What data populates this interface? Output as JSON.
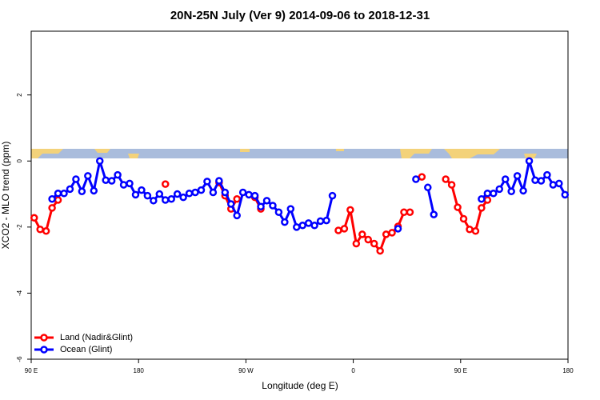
{
  "chart_data": {
    "type": "line",
    "title": "20N-25N July (Ver 9)   2014-09-06 to 2018-12-31",
    "x_label": "Longitude (deg E)",
    "y_label": "XCO2 - MLO trend (ppm)",
    "x": [
      92.5,
      97.5,
      102.5,
      107.5,
      112.5,
      117.5,
      122.5,
      127.5,
      132.5,
      137.5,
      142.5,
      147.5,
      152.5,
      157.5,
      162.5,
      167.5,
      172.5,
      177.5,
      182.5,
      187.5,
      192.5,
      197.5,
      202.5,
      207.5,
      212.5,
      217.5,
      222.5,
      227.5,
      232.5,
      237.5,
      242.5,
      247.5,
      252.5,
      257.5,
      262.5,
      267.5,
      272.5,
      277.5,
      282.5,
      287.5,
      292.5,
      297.5,
      302.5,
      307.5,
      312.5,
      317.5,
      322.5,
      327.5,
      332.5,
      337.5,
      342.5,
      347.5,
      352.5,
      357.5,
      362.5,
      367.5,
      372.5,
      377.5,
      382.5,
      387.5,
      392.5,
      397.5,
      402.5,
      407.5,
      412.5,
      417.5,
      422.5,
      427.5,
      432.5,
      437.5,
      442.5,
      447.5,
      452.5,
      457.5,
      462.5,
      467.5,
      472.5,
      477.5,
      482.5,
      487.5,
      492.5,
      497.5,
      502.5,
      507.5,
      512.5,
      517.5,
      522.5,
      527.5,
      532.5,
      537.5
    ],
    "series": [
      {
        "name": "Land (Nadir&Glint)",
        "color": "#ff0000",
        "values": [
          -1.72,
          -2.07,
          -2.12,
          -1.42,
          -1.18,
          null,
          null,
          null,
          null,
          null,
          null,
          null,
          null,
          null,
          null,
          null,
          null,
          null,
          null,
          null,
          null,
          null,
          -0.7,
          null,
          null,
          null,
          null,
          null,
          null,
          null,
          null,
          -0.65,
          -1.05,
          -1.45,
          -1.15,
          null,
          null,
          -1.1,
          -1.45,
          null,
          null,
          null,
          null,
          null,
          null,
          null,
          null,
          null,
          null,
          null,
          null,
          -2.1,
          -2.05,
          -1.48,
          -2.5,
          -2.22,
          -2.38,
          -2.5,
          -2.72,
          -2.22,
          -2.17,
          -1.98,
          -1.55,
          -1.55,
          null,
          -0.48,
          null,
          null,
          null,
          -0.55,
          -0.72,
          -1.4,
          -1.75,
          -2.07,
          -2.12,
          -1.42,
          -1.18,
          null,
          null,
          null,
          null,
          null,
          null,
          null,
          null,
          null,
          null,
          null,
          null,
          null
        ]
      },
      {
        "name": "Ocean (Glint)",
        "color": "#0000ff",
        "values": [
          null,
          null,
          null,
          -1.15,
          -0.98,
          -0.98,
          -0.85,
          -0.55,
          -0.92,
          -0.45,
          -0.9,
          0.0,
          -0.58,
          -0.6,
          -0.42,
          -0.72,
          -0.68,
          -1.02,
          -0.88,
          -1.05,
          -1.2,
          -1.0,
          -1.18,
          -1.15,
          -1.0,
          -1.1,
          -0.98,
          -0.95,
          -0.88,
          -0.62,
          -0.95,
          -0.6,
          -0.95,
          -1.3,
          -1.65,
          -0.95,
          -1.02,
          -1.05,
          -1.38,
          -1.2,
          -1.35,
          -1.55,
          -1.85,
          -1.45,
          -2.0,
          -1.95,
          -1.88,
          -1.95,
          -1.82,
          -1.8,
          -1.05,
          null,
          null,
          null,
          null,
          null,
          null,
          null,
          null,
          null,
          null,
          -2.05,
          null,
          null,
          -0.55,
          null,
          -0.8,
          -1.62,
          null,
          null,
          null,
          null,
          null,
          null,
          null,
          -1.15,
          -0.98,
          -0.98,
          -0.85,
          -0.55,
          -0.92,
          -0.45,
          -0.9,
          0.0,
          -0.58,
          -0.6,
          -0.42,
          -0.72,
          -0.68,
          -1.02
        ]
      }
    ],
    "xlim": [
      90,
      540
    ],
    "xticks": [
      {
        "value": 90,
        "label": "90 E"
      },
      {
        "value": 180,
        "label": "180"
      },
      {
        "value": 270,
        "label": "90 W"
      },
      {
        "value": 360,
        "label": "0"
      },
      {
        "value": 450,
        "label": "90 E"
      },
      {
        "value": 540,
        "label": "180"
      }
    ],
    "ylim": [
      -6,
      3.93
    ],
    "yticks": [
      -6,
      -4,
      -2,
      0,
      2
    ],
    "legend": "bottomleft"
  }
}
